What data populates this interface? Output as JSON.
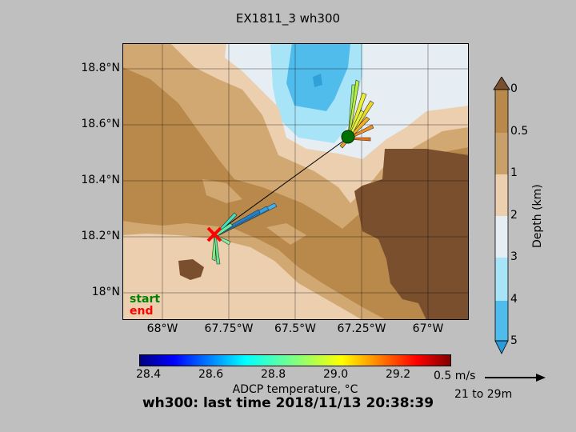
{
  "title": "EX1811_3 wh300",
  "bottom_title": "wh300: last time 2018/11/13 20:38:39",
  "map": {
    "lat_ticks": [
      "18.8°N",
      "18.6°N",
      "18.4°N",
      "18.2°N",
      "18°N"
    ],
    "lon_ticks": [
      "68°W",
      "67.75°W",
      "67.5°W",
      "67.25°W",
      "67°W"
    ],
    "start_label": "start",
    "end_label": "end",
    "start_color": "#008000",
    "end_color": "#ff0000",
    "track_color": "#000000",
    "station_marker_color": "#007000"
  },
  "depth_colorbar": {
    "label": "Depth (km)",
    "ticks": [
      "0",
      "0.5",
      "1",
      "2",
      "3",
      "4",
      "5"
    ],
    "colors": [
      "#7a4f2e",
      "#b8894a",
      "#d2a872",
      "#eccfae",
      "#e6eef4",
      "#a8e4f8",
      "#50bcec"
    ]
  },
  "temp_colorbar": {
    "label": "ADCP temperature, °C",
    "ticks": [
      "28.4",
      "28.6",
      "28.8",
      "29.0",
      "29.2"
    ],
    "colormap": "jet"
  },
  "reference_arrow": {
    "speed": "0.5 m/s",
    "depth_range": "21 to 29m"
  }
}
